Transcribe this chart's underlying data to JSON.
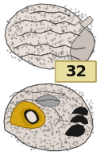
{
  "title": "32",
  "badge_bg": "#e8dfa0",
  "badge_border": "#b8a060",
  "badge_text_color": "#111111",
  "badge_fontsize": 14,
  "badge_fontweight": "bold",
  "fig_bg": "#ffffff",
  "brain_bg": "#d0c8c0",
  "highlight_color": "#d4a000",
  "figsize": [
    1.26,
    2.0
  ],
  "dpi": 100
}
